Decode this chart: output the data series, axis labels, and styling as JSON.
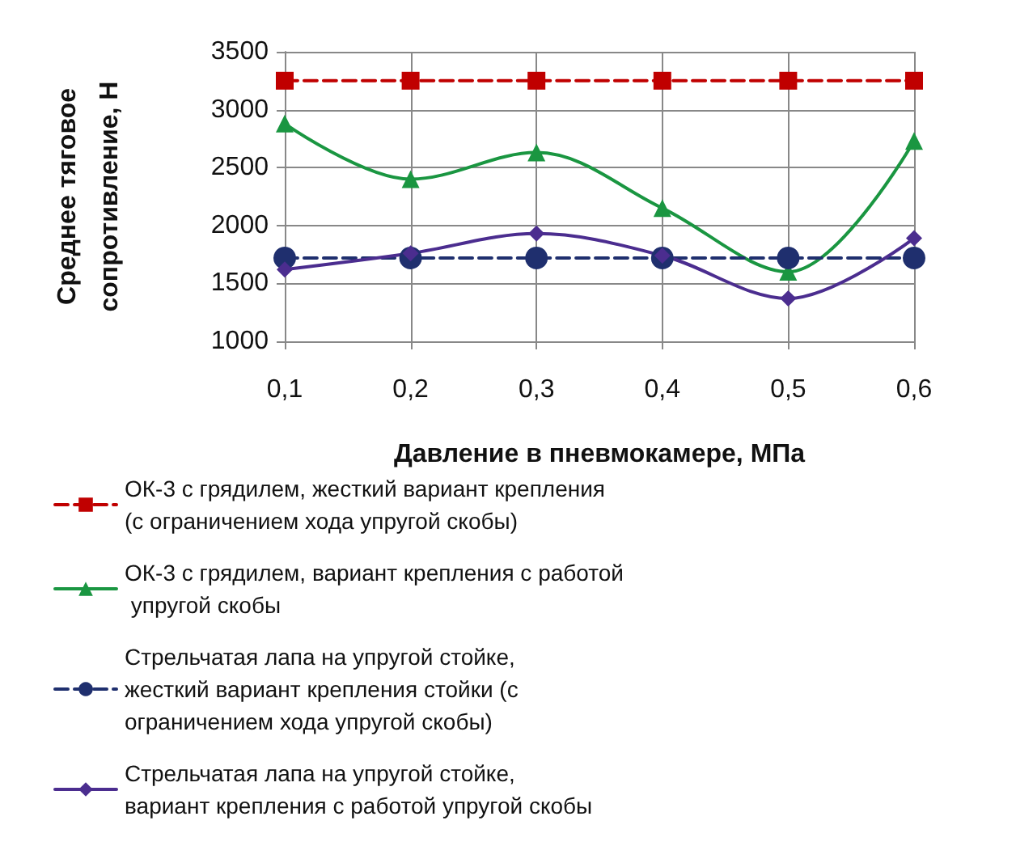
{
  "chart_data": {
    "type": "line",
    "xlabel": "Давление в пневмокамере, МПа",
    "ylabel": "Среднее тяговое сопротивление, Н",
    "categories": [
      "0,1",
      "0,2",
      "0,3",
      "0,4",
      "0,5",
      "0,6"
    ],
    "ylim": [
      1000,
      3500
    ],
    "yticks": [
      1000,
      1500,
      2000,
      2500,
      3000,
      3500
    ],
    "grid": true,
    "legend": "bottom",
    "series": [
      {
        "name": "ОК-3 с грядилем, жесткий вариант крепления (с ограничением хода упругой скобы)",
        "color": "#c00000",
        "marker": "square",
        "line_style": "dashed",
        "values": [
          3250,
          3250,
          3250,
          3250,
          3250,
          3250
        ]
      },
      {
        "name": "ОК-3 с грядилем, вариант крепления с работой упругой скобы",
        "color": "#1a9641",
        "marker": "triangle",
        "line_style": "solid",
        "values": [
          2880,
          2400,
          2630,
          2150,
          1600,
          2730
        ]
      },
      {
        "name": "Стрельчатая лапа на упругой стойке, жесткий вариант крепления стойки (с ограничением хода упругой скобы)",
        "color": "#1f2f6e",
        "marker": "circle",
        "line_style": "dashed",
        "values": [
          1720,
          1720,
          1720,
          1720,
          1720,
          1720
        ]
      },
      {
        "name": "Стрельчатая лапа на упругой стойке, вариант крепления с работой упругой скобы",
        "color": "#4b2d8f",
        "marker": "diamond",
        "line_style": "solid",
        "values": [
          1620,
          1760,
          1930,
          1740,
          1370,
          1890
        ]
      }
    ]
  }
}
